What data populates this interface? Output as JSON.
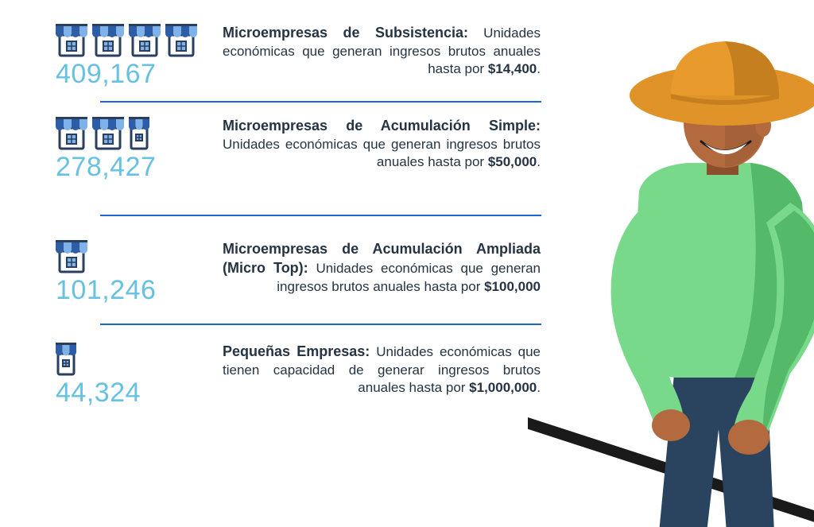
{
  "colors": {
    "count": "#66c1e3",
    "divider": "#1a67d4",
    "text": "#253342",
    "store_roof_dark": "#2d5da6",
    "store_roof_light": "#7eb2e8",
    "store_body": "#ffffff",
    "store_outline": "#2a3f5f",
    "store_window": "#7eb2e8",
    "farmer_hat": "#e89a2d",
    "farmer_hat_shadow": "#c57f1f",
    "farmer_skin": "#b36a3f",
    "farmer_skin_shadow": "#8c4f2c",
    "farmer_shirt": "#78d98a",
    "farmer_shirt_shadow": "#55b96a",
    "farmer_pants": "#2a4460",
    "farmer_stick": "#1a1a1a"
  },
  "categories": [
    {
      "count": "409,167",
      "icons": {
        "full": 4,
        "small": 0
      },
      "title": "Microempresas de Subsistencia:",
      "desc_pre": "Unidades económicas que generan ingresos brutos anuales hasta por ",
      "amount": "$14,400",
      "desc_post": "."
    },
    {
      "count": "278,427",
      "icons": {
        "full": 2,
        "small": 1
      },
      "title": "Microempresas de Acumulación Simple:",
      "desc_pre": "Unidades económicas que generan ingresos brutos anuales hasta por ",
      "amount": "$50,000",
      "desc_post": "."
    },
    {
      "count": "101,246",
      "icons": {
        "full": 1,
        "small": 0
      },
      "title": "Microempresas de Acumulación Ampliada (Micro Top):",
      "desc_pre": "Unidades económicas que generan ingresos brutos anuales hasta por ",
      "amount": "$100,000",
      "desc_post": ""
    },
    {
      "count": "44,324",
      "icons": {
        "full": 0,
        "small": 1
      },
      "title": "Pequeñas Empresas:",
      "desc_pre": "Unidades económicas que tienen capacidad de generar ingresos brutos anuales hasta por ",
      "amount": "$1,000,000",
      "desc_post": "."
    }
  ]
}
